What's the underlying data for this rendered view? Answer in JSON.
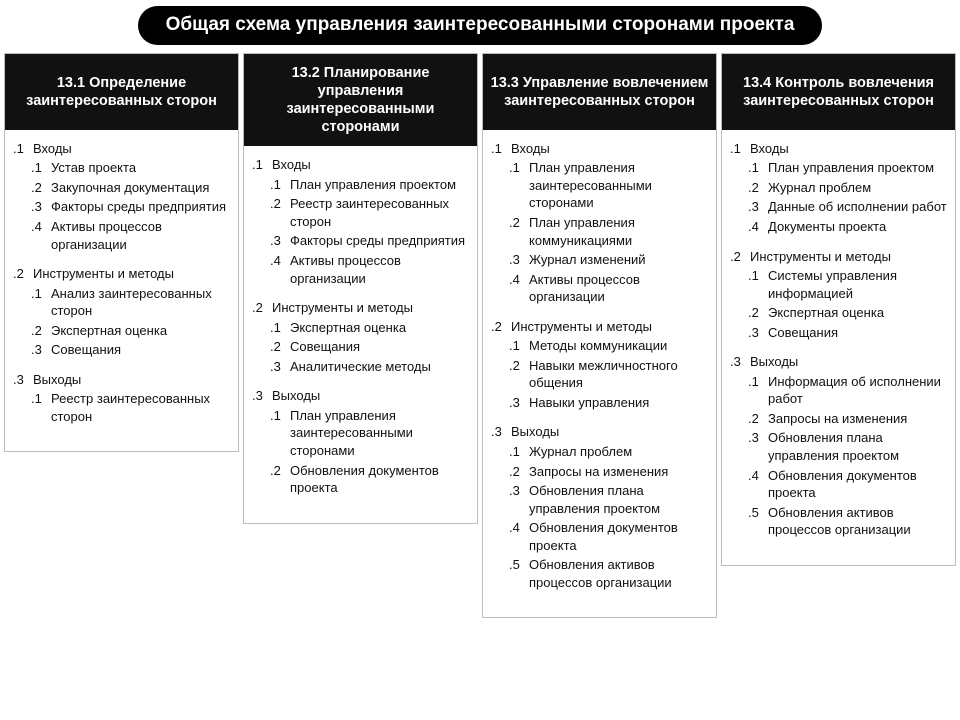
{
  "type": "flowchart",
  "background_color": "#ffffff",
  "title": {
    "text": "Общая схема управления заинтересованными сторонами проекта",
    "bg": "#000000",
    "color": "#ffffff",
    "fontsize": 19,
    "border_radius": 24
  },
  "column_header_style": {
    "bg": "#111111",
    "color": "#ffffff",
    "fontsize": 14.5,
    "weight": "bold"
  },
  "body_style": {
    "fontsize": 13,
    "color": "#111111",
    "border_color": "#bdbdbd"
  },
  "columns": [
    {
      "header": "13.1 Определение заинтересованных сторон",
      "sections": [
        {
          "num": ".1",
          "label": "Входы",
          "items": [
            {
              "num": ".1",
              "text": "Устав проекта"
            },
            {
              "num": ".2",
              "text": "Закупочная документация"
            },
            {
              "num": ".3",
              "text": "Факторы среды предприятия"
            },
            {
              "num": ".4",
              "text": "Активы процессов организации"
            }
          ]
        },
        {
          "num": ".2",
          "label": "Инструменты и методы",
          "items": [
            {
              "num": ".1",
              "text": "Анализ заинтересованных сторон"
            },
            {
              "num": ".2",
              "text": "Экспертная оценка"
            },
            {
              "num": ".3",
              "text": "Совещания"
            }
          ]
        },
        {
          "num": ".3",
          "label": "Выходы",
          "items": [
            {
              "num": ".1",
              "text": "Реестр заинтересованных сторон"
            }
          ]
        }
      ]
    },
    {
      "header": "13.2 Планирование управления заинтересованными сторонами",
      "sections": [
        {
          "num": ".1",
          "label": "Входы",
          "items": [
            {
              "num": ".1",
              "text": "План управления проектом"
            },
            {
              "num": ".2",
              "text": "Реестр заинтересованных сторон"
            },
            {
              "num": ".3",
              "text": "Факторы среды предприятия"
            },
            {
              "num": ".4",
              "text": "Активы процессов организации"
            }
          ]
        },
        {
          "num": ".2",
          "label": "Инструменты и методы",
          "items": [
            {
              "num": ".1",
              "text": "Экспертная оценка"
            },
            {
              "num": ".2",
              "text": "Совещания"
            },
            {
              "num": ".3",
              "text": "Аналитические методы"
            }
          ]
        },
        {
          "num": ".3",
          "label": "Выходы",
          "items": [
            {
              "num": ".1",
              "text": "План управления заинтересованными сторонами"
            },
            {
              "num": ".2",
              "text": "Обновления документов проекта"
            }
          ]
        }
      ]
    },
    {
      "header": "13.3 Управление вовлечением заинтересованных сторон",
      "sections": [
        {
          "num": ".1",
          "label": "Входы",
          "items": [
            {
              "num": ".1",
              "text": "План управления заинтересованными сторонами"
            },
            {
              "num": ".2",
              "text": "План управления коммуникациями"
            },
            {
              "num": ".3",
              "text": "Журнал изменений"
            },
            {
              "num": ".4",
              "text": "Активы процессов организации"
            }
          ]
        },
        {
          "num": ".2",
          "label": "Инструменты и методы",
          "items": [
            {
              "num": ".1",
              "text": "Методы коммуникации"
            },
            {
              "num": ".2",
              "text": "Навыки межличностного общения"
            },
            {
              "num": ".3",
              "text": "Навыки управления"
            }
          ]
        },
        {
          "num": ".3",
          "label": "Выходы",
          "items": [
            {
              "num": ".1",
              "text": "Журнал проблем"
            },
            {
              "num": ".2",
              "text": "Запросы на изменения"
            },
            {
              "num": ".3",
              "text": "Обновления плана управления проектом"
            },
            {
              "num": ".4",
              "text": "Обновления документов проекта"
            },
            {
              "num": ".5",
              "text": "Обновления активов процессов организации"
            }
          ]
        }
      ]
    },
    {
      "header": "13.4 Контроль вовлечения заинтересованных сторон",
      "sections": [
        {
          "num": ".1",
          "label": "Входы",
          "items": [
            {
              "num": ".1",
              "text": "План управления проектом"
            },
            {
              "num": ".2",
              "text": "Журнал проблем"
            },
            {
              "num": ".3",
              "text": "Данные об исполнении работ"
            },
            {
              "num": ".4",
              "text": "Документы проекта"
            }
          ]
        },
        {
          "num": ".2",
          "label": "Инструменты и методы",
          "items": [
            {
              "num": ".1",
              "text": "Системы управления информацией"
            },
            {
              "num": ".2",
              "text": "Экспертная оценка"
            },
            {
              "num": ".3",
              "text": "Совещания"
            }
          ]
        },
        {
          "num": ".3",
          "label": "Выходы",
          "items": [
            {
              "num": ".1",
              "text": "Информация об исполнении работ"
            },
            {
              "num": ".2",
              "text": "Запросы на изменения"
            },
            {
              "num": ".3",
              "text": "Обновления плана управления проектом"
            },
            {
              "num": ".4",
              "text": "Обновления документов проекта"
            },
            {
              "num": ".5",
              "text": "Обновления активов процессов организации"
            }
          ]
        }
      ]
    }
  ]
}
